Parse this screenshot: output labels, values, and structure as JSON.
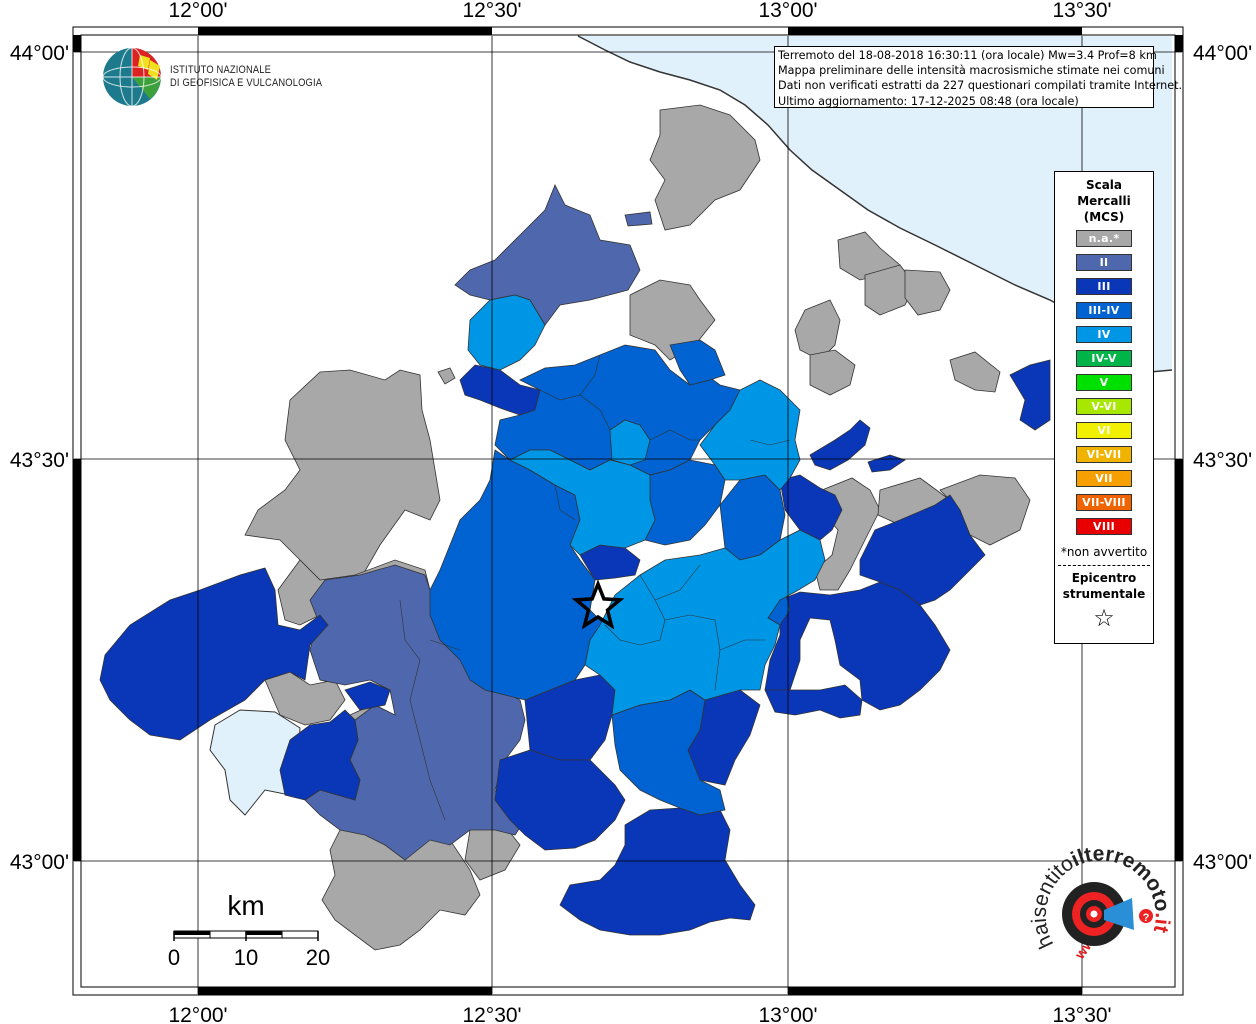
{
  "map": {
    "lon_ticks": [
      "12°00'",
      "12°30'",
      "13°00'",
      "13°30'"
    ],
    "lat_ticks": [
      "44°00'",
      "43°30'",
      "43°00'"
    ]
  },
  "logo": {
    "line1": "ISTITUTO NAZIONALE",
    "line2": "DI GEOFISICA E VULCANOLOGIA"
  },
  "info": {
    "line1": "Terremoto del 18-08-2018 16:30:11 (ora locale) Mw=3.4 Prof=8 km",
    "line2": "Mappa preliminare delle intensità macrosismiche stimate nei comuni",
    "line3": "Dati non verificati estratti da 227 questionari compilati tramite Internet.",
    "line4": "Ultimo aggiornamento: 17-12-2025 08:48 (ora locale)"
  },
  "legend": {
    "title_line1": "Scala",
    "title_line2": "Mercalli",
    "title_line3": "(MCS)",
    "items": [
      {
        "label": "n.a.*",
        "color": "#a8a8a8"
      },
      {
        "label": "II",
        "color": "#4f68ad"
      },
      {
        "label": "III",
        "color": "#0a36b8"
      },
      {
        "label": "III-IV",
        "color": "#0063d1"
      },
      {
        "label": "IV",
        "color": "#0096e6"
      },
      {
        "label": "IV-V",
        "color": "#00b44a"
      },
      {
        "label": "V",
        "color": "#00e000"
      },
      {
        "label": "V-VI",
        "color": "#a8e800"
      },
      {
        "label": "VI",
        "color": "#f0f000"
      },
      {
        "label": "VI-VII",
        "color": "#f0b400"
      },
      {
        "label": "VII",
        "color": "#f5a000"
      },
      {
        "label": "VII-VIII",
        "color": "#f06400"
      },
      {
        "label": "VIII",
        "color": "#e80000"
      }
    ],
    "note": "*non avvertito",
    "epicenter_line1": "Epicentro",
    "epicenter_line2": "strumentale",
    "star": "☆"
  },
  "scalebar": {
    "unit": "km",
    "labels": [
      "0",
      "10",
      "20"
    ]
  },
  "badge": {
    "text_left": "haisentito",
    "text_main": "ilterremoto",
    "text_suffix": ".it",
    "text_www": "www."
  },
  "colors": {
    "sea": "#e1f1fb",
    "lake": "#e1f1fb",
    "na": "#a8a8a8",
    "ii": "#4f68ad",
    "iii": "#0a36b8",
    "iii_iv": "#0063d1",
    "iv": "#0096e6"
  }
}
